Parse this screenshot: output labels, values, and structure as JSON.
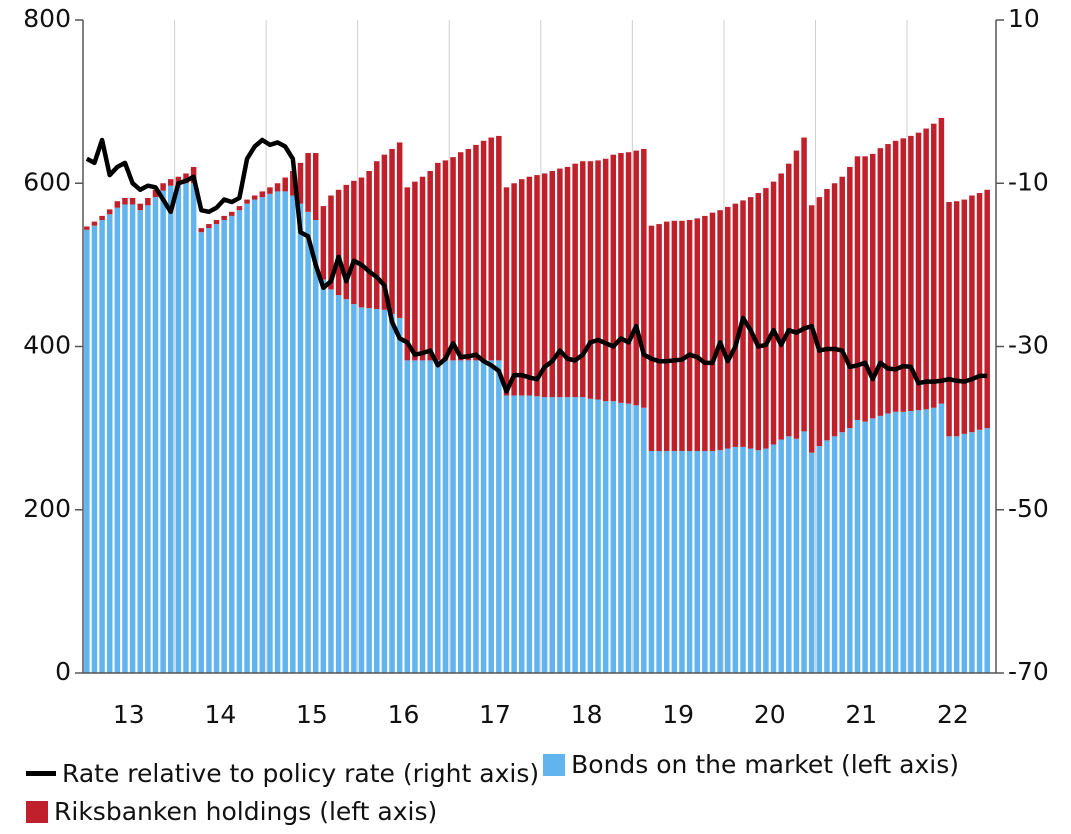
{
  "chart_data": {
    "type": "bar",
    "categories": [
      null,
      null,
      null,
      null,
      null,
      null,
      "13",
      null,
      null,
      null,
      null,
      null,
      null,
      null,
      null,
      null,
      null,
      null,
      "14",
      null,
      null,
      null,
      null,
      null,
      null,
      null,
      null,
      null,
      null,
      null,
      "15",
      null,
      null,
      null,
      null,
      null,
      null,
      null,
      null,
      null,
      null,
      null,
      "16",
      null,
      null,
      null,
      null,
      null,
      null,
      null,
      null,
      null,
      null,
      null,
      "17",
      null,
      null,
      null,
      null,
      null,
      null,
      null,
      null,
      null,
      null,
      null,
      "18",
      null,
      null,
      null,
      null,
      null,
      null,
      null,
      null,
      null,
      null,
      null,
      "19",
      null,
      null,
      null,
      null,
      null,
      null,
      null,
      null,
      null,
      null,
      null,
      "20",
      null,
      null,
      null,
      null,
      null,
      null,
      null,
      null,
      null,
      null,
      null,
      "21",
      null,
      null,
      null,
      null,
      null,
      null,
      null,
      null,
      null,
      null,
      null,
      "22",
      null,
      null,
      null,
      null
    ],
    "series": [
      {
        "name": "Rate relative to policy rate (right axis)",
        "type": "line",
        "axis": "y2",
        "color": "#000000",
        "values": [
          -7,
          -7.5,
          -4.7,
          -9,
          -8,
          -7.5,
          -10,
          -10.8,
          -10.3,
          -10.5,
          -12,
          -13.5,
          -10,
          -9.7,
          -9.2,
          -13.3,
          -13.5,
          -13,
          -12,
          -12.3,
          -11.8,
          -7,
          -5.5,
          -4.7,
          -5.3,
          -5,
          -5.5,
          -7,
          -16,
          -16.5,
          -20,
          -22.8,
          -22,
          -19,
          -22,
          -19.5,
          -20,
          -20.8,
          -21.5,
          -22.5,
          -27,
          -29,
          -29.5,
          -31,
          -30.8,
          -30.5,
          -32.3,
          -31.5,
          -29.6,
          -31.3,
          -31.2,
          -31,
          -31.8,
          -32.3,
          -33,
          -35.5,
          -33.5,
          -33.5,
          -33.8,
          -34,
          -32.5,
          -31.8,
          -30.5,
          -31.5,
          -31.7,
          -31,
          -29.5,
          -29.2,
          -29.6,
          -30,
          -29,
          -29.5,
          -27.5,
          -31,
          -31.5,
          -31.8,
          -31.8,
          -31.7,
          -31.6,
          -31,
          -31.3,
          -32,
          -32,
          -29.5,
          -31.8,
          -30,
          -26.5,
          -28,
          -30,
          -29.8,
          -28,
          -29.8,
          -28,
          -28.3,
          -27.8,
          -27.5,
          -30.5,
          -30.3,
          -30.3,
          -30.5,
          -32.5,
          -32.3,
          -32,
          -34,
          -32,
          -32.7,
          -32.8,
          -32.4,
          -32.5,
          -34.5,
          -34.3,
          -34.3,
          -34.2,
          -34,
          -34.2,
          -34.3,
          -34,
          -33.6,
          -33.6
        ]
      },
      {
        "name": "Bonds on the market (left axis)",
        "type": "bar",
        "color": "#62b4ef",
        "values": [
          543,
          548,
          555,
          562,
          570,
          574,
          574,
          567,
          573,
          583,
          591,
          597,
          598,
          600,
          600,
          540,
          545,
          550,
          555,
          560,
          567,
          575,
          580,
          583,
          587,
          590,
          590,
          585,
          575,
          565,
          555,
          482,
          470,
          463,
          458,
          452,
          448,
          447,
          446,
          445,
          440,
          435,
          383,
          383,
          383,
          383,
          383,
          383,
          383,
          383,
          383,
          383,
          383,
          383,
          383,
          340,
          340,
          340,
          340,
          339,
          338,
          338,
          338,
          338,
          338,
          338,
          336,
          335,
          333,
          333,
          331,
          330,
          328,
          325,
          272,
          272,
          272,
          272,
          272,
          272,
          272,
          272,
          272,
          273,
          275,
          277,
          277,
          275,
          273,
          275,
          280,
          286,
          290,
          287,
          296,
          270,
          278,
          285,
          290,
          295,
          300,
          310,
          308,
          312,
          315,
          318,
          320,
          320,
          321,
          322,
          323,
          325,
          330,
          290,
          290,
          293,
          295,
          298,
          300
        ]
      },
      {
        "name": "Riksbanken holdings (left axis)",
        "type": "bar",
        "color": "#c0202b",
        "values": [
          4,
          5,
          5,
          6,
          8,
          8,
          8,
          8,
          9,
          9,
          9,
          8,
          10,
          12,
          20,
          5,
          5,
          5,
          5,
          5,
          5,
          5,
          5,
          7,
          8,
          10,
          17,
          30,
          50,
          72,
          82,
          90,
          115,
          129,
          140,
          151,
          159,
          168,
          181,
          190,
          202,
          215,
          212,
          219,
          225,
          232,
          242,
          245,
          249,
          255,
          259,
          264,
          269,
          273,
          275,
          255,
          260,
          265,
          268,
          271,
          274,
          277,
          280,
          282,
          286,
          289,
          291,
          293,
          297,
          302,
          306,
          308,
          312,
          317,
          276,
          278,
          281,
          282,
          282,
          283,
          285,
          288,
          292,
          294,
          296,
          298,
          302,
          308,
          315,
          319,
          322,
          326,
          334,
          353,
          360,
          303,
          305,
          308,
          310,
          313,
          320,
          323,
          325,
          324,
          328,
          330,
          332,
          335,
          337,
          340,
          344,
          348,
          350,
          287,
          288,
          287,
          290,
          290,
          292
        ]
      }
    ],
    "ylim": [
      0,
      800
    ],
    "yticks": [
      0,
      200,
      400,
      600,
      800
    ],
    "y2lim": [
      -70,
      10
    ],
    "y2ticks": [
      -70,
      -50,
      -30,
      -10,
      10
    ],
    "stacked": true
  }
}
